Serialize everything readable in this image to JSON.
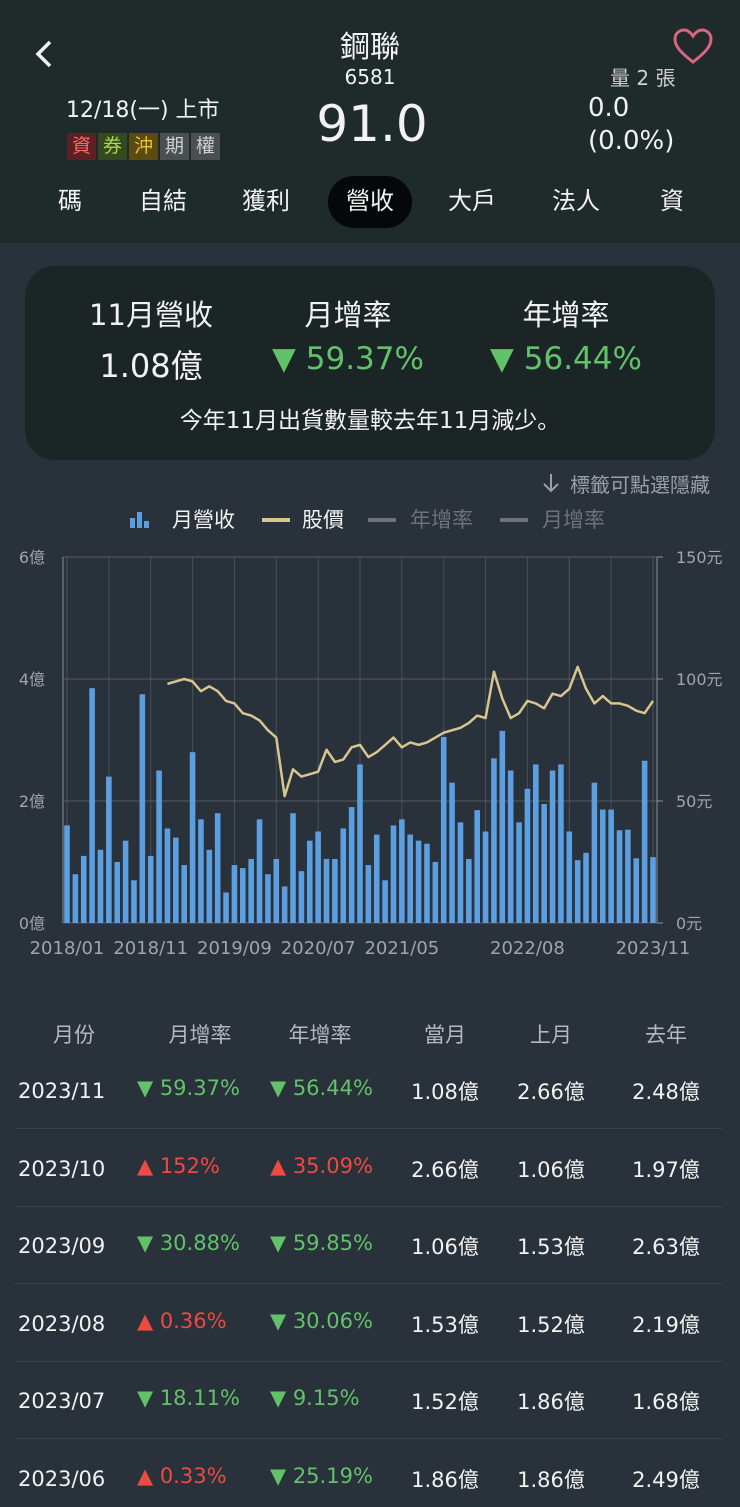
{
  "header": {
    "name": "鋼聯",
    "code": "6581",
    "date": "12/18(一) 上市",
    "badges": [
      "資",
      "券",
      "沖",
      "期",
      "權"
    ],
    "price": "91.0",
    "volume": "量 2 張",
    "change": "0.0",
    "change_pct": "(0.0%)"
  },
  "tabs": {
    "items": [
      "碼",
      "自結",
      "獲利",
      "營收",
      "大戶",
      "法人",
      "資"
    ],
    "active": 3
  },
  "summary": {
    "revenue_label": "11月營收",
    "revenue": "1.08億",
    "mom_label": "月增率",
    "mom": "▼ 59.37%",
    "yoy_label": "年增率",
    "yoy": "▼ 56.44%",
    "note": "今年11月出貨數量較去年11月減少。",
    "hint": "標籤可點選隱藏"
  },
  "chart_data": {
    "type": "bar",
    "categories": [
      "2018/01",
      null,
      null,
      null,
      null,
      null,
      null,
      null,
      null,
      null,
      "2018/11",
      null,
      null,
      null,
      null,
      null,
      null,
      null,
      null,
      null,
      "2019/09",
      null,
      null,
      null,
      null,
      null,
      null,
      null,
      null,
      null,
      "2020/07",
      null,
      null,
      null,
      null,
      null,
      null,
      null,
      null,
      null,
      "2021/05",
      null,
      null,
      null,
      null,
      null,
      null,
      null,
      null,
      null,
      null,
      null,
      null,
      null,
      null,
      "2022/08",
      null,
      null,
      null,
      null,
      null,
      null,
      null,
      null,
      null,
      null,
      null,
      null,
      null,
      null,
      "2023/11"
    ],
    "series": [
      {
        "name": "月營收",
        "type": "bar",
        "color": "#5b9fe0",
        "visible": true,
        "values": [
          1.6,
          0.8,
          1.1,
          3.85,
          1.2,
          2.4,
          1.0,
          1.35,
          0.7,
          3.75,
          1.1,
          2.5,
          1.55,
          1.4,
          0.95,
          2.8,
          1.7,
          1.2,
          1.8,
          0.5,
          0.95,
          0.9,
          1.05,
          1.7,
          0.8,
          1.05,
          0.6,
          1.8,
          0.85,
          1.35,
          1.5,
          1.05,
          1.05,
          1.55,
          1.9,
          2.6,
          0.95,
          1.45,
          0.7,
          1.6,
          1.7,
          1.45,
          1.35,
          1.3,
          1.0,
          3.05,
          2.3,
          1.65,
          1.05,
          1.85,
          1.5,
          2.7,
          3.15,
          2.5,
          1.65,
          2.2,
          2.6,
          1.95,
          2.5,
          2.6,
          1.5,
          1.03,
          1.15,
          2.3,
          1.86,
          1.86,
          1.52,
          1.53,
          1.06,
          2.66,
          1.08
        ]
      },
      {
        "name": "股價",
        "type": "line",
        "axis": "y2",
        "color": "#d8c58f",
        "visible": true,
        "values": [
          null,
          null,
          null,
          null,
          null,
          null,
          null,
          null,
          null,
          null,
          null,
          null,
          98,
          99,
          100,
          99,
          95,
          97,
          95,
          91,
          90,
          86,
          85,
          83,
          79,
          76,
          52,
          63,
          60,
          61,
          62,
          71,
          66,
          67,
          72,
          73,
          68,
          70,
          73,
          76,
          72,
          74,
          73,
          74,
          76,
          78,
          79,
          80,
          82,
          85,
          84,
          103,
          92,
          84,
          86,
          91,
          90,
          88,
          94,
          93,
          96,
          105,
          96,
          90,
          93,
          90,
          90,
          89,
          87,
          86,
          91
        ]
      },
      {
        "name": "年增率",
        "type": "line",
        "color": "#e6e6e6",
        "visible": false
      },
      {
        "name": "月增率",
        "type": "line",
        "color": "#e6e6e6",
        "visible": false
      }
    ],
    "ylim": [
      0,
      6
    ],
    "yticks": [
      {
        "value": 0,
        "label": "0億"
      },
      {
        "value": 2,
        "label": "2億"
      },
      {
        "value": 4,
        "label": "4億"
      },
      {
        "value": 6,
        "label": "6億"
      }
    ],
    "y2lim": [
      0,
      150
    ],
    "y2ticks": [
      {
        "value": 0,
        "label": "0元"
      },
      {
        "value": 50,
        "label": "50元"
      },
      {
        "value": 100,
        "label": "100元"
      },
      {
        "value": 150,
        "label": "150元"
      }
    ],
    "grid": true
  },
  "table": {
    "columns": [
      "月份",
      "月增率",
      "年增率",
      "當月",
      "上月",
      "去年"
    ],
    "rows": [
      [
        "2023/11",
        "▼ 59.37%",
        "▼ 56.44%",
        "1.08億",
        "2.66億",
        "2.48億"
      ],
      [
        "2023/10",
        "▲ 152%",
        "▲ 35.09%",
        "2.66億",
        "1.06億",
        "1.97億"
      ],
      [
        "2023/09",
        "▼ 30.88%",
        "▼ 59.85%",
        "1.06億",
        "1.53億",
        "2.63億"
      ],
      [
        "2023/08",
        "▲ 0.36%",
        "▼ 30.06%",
        "1.53億",
        "1.52億",
        "2.19億"
      ],
      [
        "2023/07",
        "▼ 18.11%",
        "▼ 9.15%",
        "1.52億",
        "1.86億",
        "1.68億"
      ],
      [
        "2023/06",
        "▲ 0.33%",
        "▼ 25.19%",
        "1.86億",
        "1.86億",
        "2.49億"
      ]
    ]
  }
}
